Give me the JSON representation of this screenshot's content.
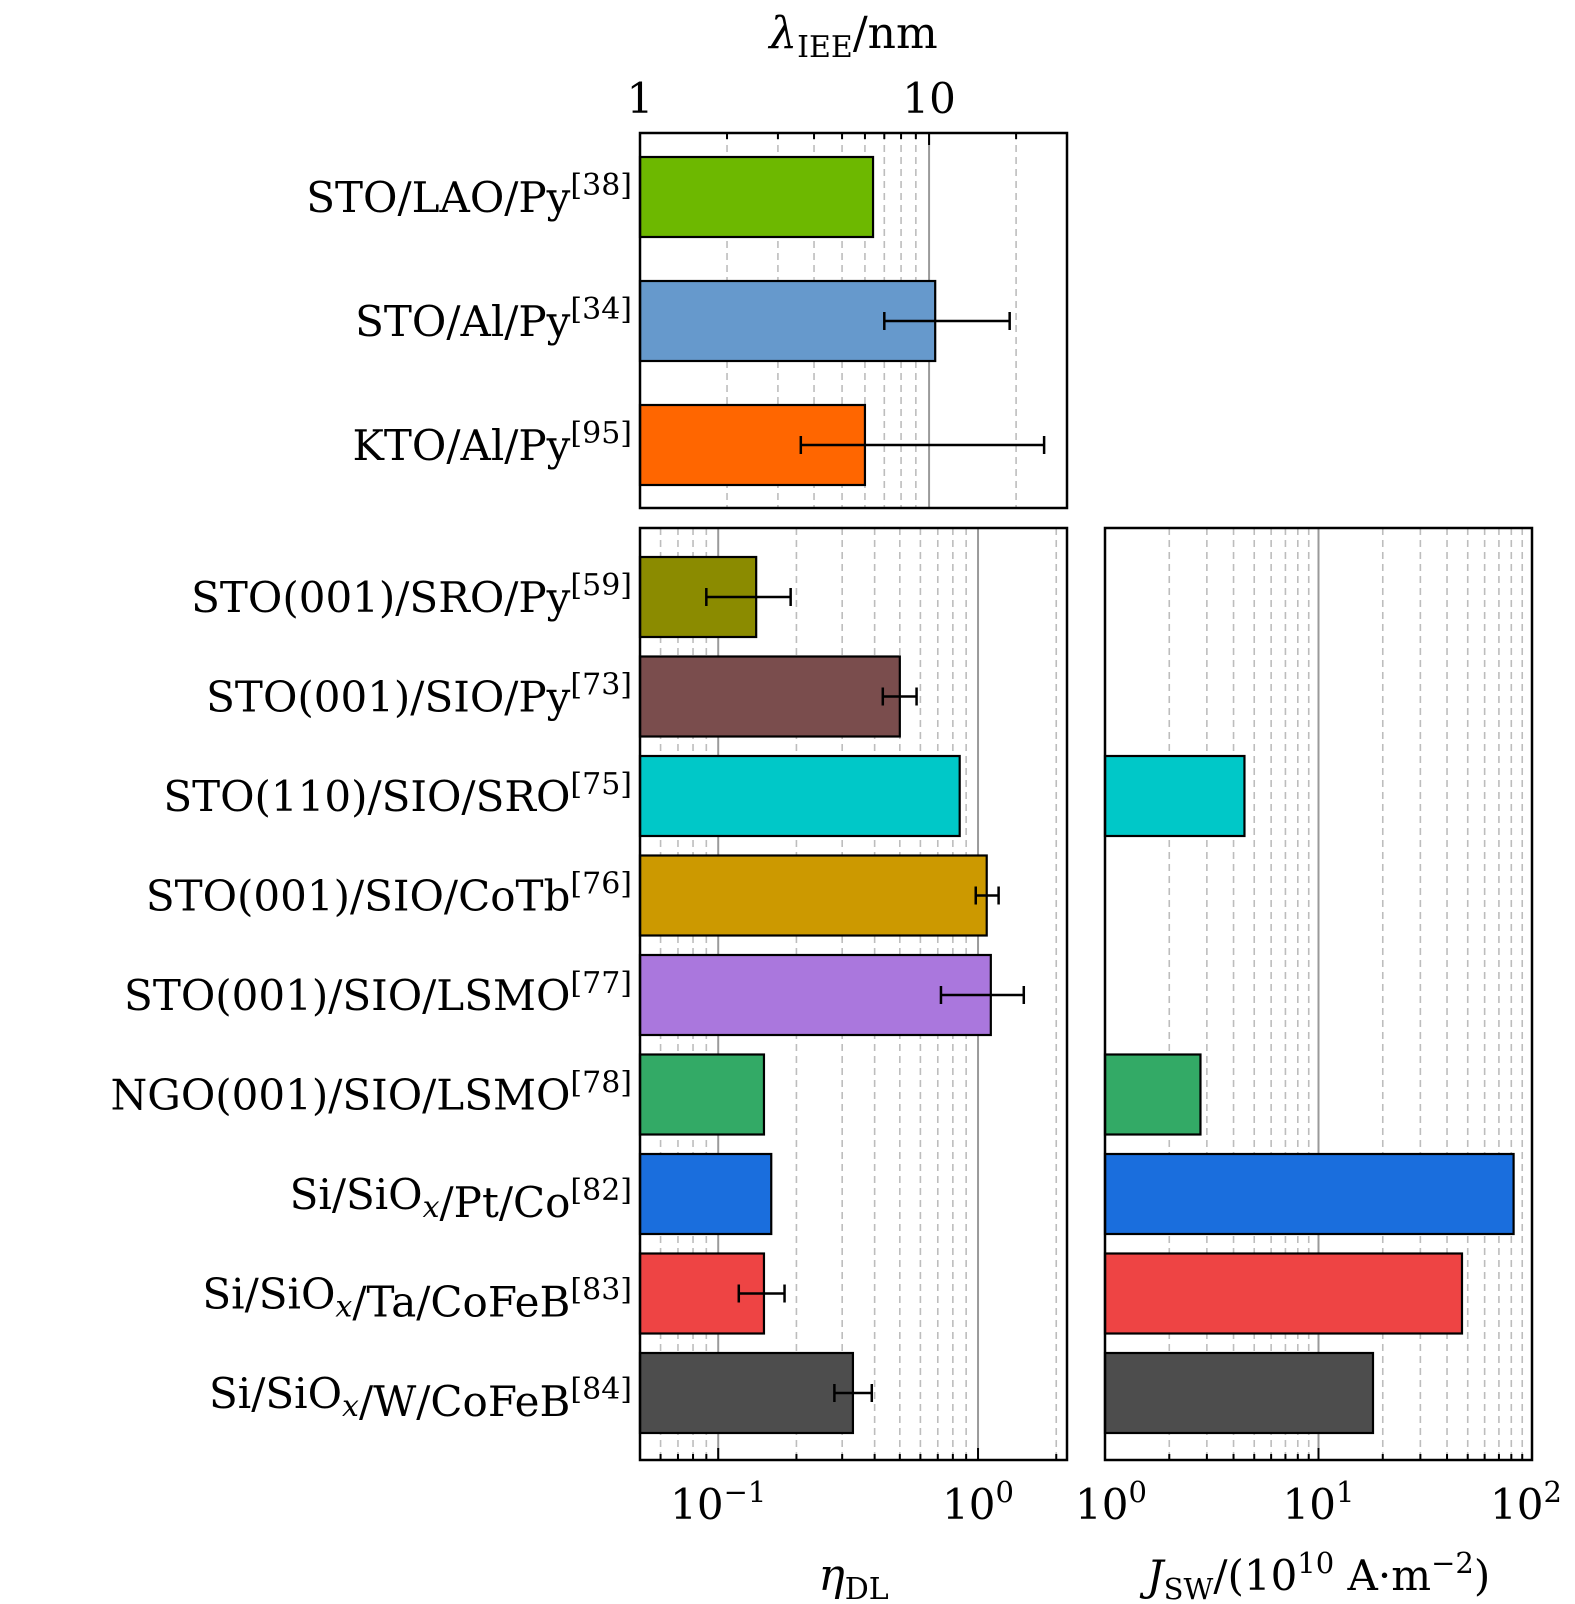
{
  "chart_data": [
    {
      "id": "lambda",
      "type": "bar",
      "orientation": "horizontal",
      "xscale": "log",
      "xlim": [
        1,
        30
      ],
      "xlabel": "λIEE/nm",
      "xlabel_main": "λ",
      "xlabel_sub": "IEE",
      "xlabel_tail": "/nm",
      "ticks": [
        {
          "value": 1,
          "label": "1"
        },
        {
          "value": 10,
          "label": "10"
        }
      ],
      "bars": [
        {
          "name": "STO/LAO/Py",
          "ref": "[38]",
          "value": 6.4,
          "color": "#6db800"
        },
        {
          "name": "STO/Al/Py",
          "ref": "[34]",
          "value": 10.5,
          "err": [
            7.0,
            19.0
          ],
          "color": "#6699cc"
        },
        {
          "name": "KTO/Al/Py",
          "ref": "[95]",
          "value": 6.0,
          "err": [
            3.6,
            25.0
          ],
          "color": "#ff6600"
        }
      ]
    },
    {
      "id": "eta",
      "type": "bar",
      "orientation": "horizontal",
      "xscale": "log",
      "xlim": [
        0.05,
        2.2
      ],
      "xlabel": "ηDL",
      "xlabel_main": "η",
      "xlabel_sub": "DL",
      "ticks": [
        {
          "value": 0.1,
          "base": "10",
          "exp": "−1"
        },
        {
          "value": 1,
          "base": "10",
          "exp": "0"
        }
      ],
      "bars": [
        {
          "name": "STO(001)/SRO/Py",
          "ref": "[59]",
          "value": 0.14,
          "err": [
            0.09,
            0.19
          ],
          "color": "#8b8b00"
        },
        {
          "name": "STO(001)/SIO/Py",
          "ref": "[73]",
          "value": 0.5,
          "err": [
            0.43,
            0.58
          ],
          "color": "#7a4d4d"
        },
        {
          "name": "STO(110)/SIO/SRO",
          "ref": "[75]",
          "value": 0.85,
          "color": "#00c8c8"
        },
        {
          "name": "STO(001)/SIO/CoTb",
          "ref": "[76]",
          "value": 1.08,
          "err": [
            0.98,
            1.2
          ],
          "color": "#cc9900"
        },
        {
          "name": "STO(001)/SIO/LSMO",
          "ref": "[77]",
          "value": 1.12,
          "err": [
            0.72,
            1.5
          ],
          "color": "#aa77dd"
        },
        {
          "name": "NGO(001)/SIO/LSMO",
          "ref": "[78]",
          "value": 0.15,
          "color": "#33aa66"
        },
        {
          "name": "Si/SiOx/Pt/Co",
          "ref": "[82]",
          "value": 0.16,
          "color": "#1a6edd"
        },
        {
          "name": "Si/SiOx/Ta/CoFeB",
          "ref": "[83]",
          "value": 0.15,
          "err": [
            0.12,
            0.18
          ],
          "color": "#ee4444"
        },
        {
          "name": "Si/SiOx/W/CoFeB",
          "ref": "[84]",
          "value": 0.33,
          "err": [
            0.28,
            0.39
          ],
          "color": "#4d4d4d"
        }
      ]
    },
    {
      "id": "jsw",
      "type": "bar",
      "orientation": "horizontal",
      "xscale": "log",
      "xlim": [
        1,
        100
      ],
      "xlabel": "JSW/(1010 A·m−2)",
      "xlabel_main": "J",
      "xlabel_sub": "SW",
      "xlabel_mid": "/(10",
      "xlabel_sup1": "10",
      "xlabel_unit": " A·m",
      "xlabel_sup2": "−2",
      "xlabel_end": ")",
      "ticks": [
        {
          "value": 1,
          "base": "10",
          "exp": "0"
        },
        {
          "value": 10,
          "base": "10",
          "exp": "1"
        },
        {
          "value": 100,
          "base": "10",
          "exp": "2"
        }
      ],
      "bars": [
        {
          "row": 2,
          "value": 4.5,
          "color": "#00c8c8"
        },
        {
          "row": 5,
          "value": 2.8,
          "color": "#33aa66"
        },
        {
          "row": 6,
          "value": 82,
          "color": "#1a6edd"
        },
        {
          "row": 7,
          "value": 47,
          "color": "#ee4444"
        },
        {
          "row": 8,
          "value": 18,
          "color": "#4d4d4d"
        }
      ]
    }
  ]
}
